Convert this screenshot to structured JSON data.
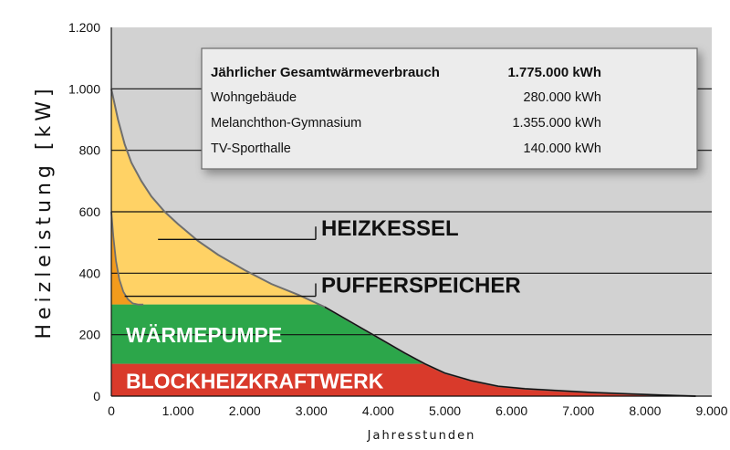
{
  "chart_data": {
    "type": "area",
    "xlabel": "Jahresstunden",
    "ylabel": "Heizleistung [kW]",
    "xlim": [
      0,
      9000
    ],
    "ylim": [
      0,
      1200
    ],
    "x_ticks": [
      {
        "value": 0,
        "label": "0"
      },
      {
        "value": 1000,
        "label": "1.000"
      },
      {
        "value": 2000,
        "label": "2.000"
      },
      {
        "value": 3000,
        "label": "3.000"
      },
      {
        "value": 4000,
        "label": "4.000"
      },
      {
        "value": 5000,
        "label": "5.000"
      },
      {
        "value": 6000,
        "label": "6.000"
      },
      {
        "value": 7000,
        "label": "7.000"
      },
      {
        "value": 8000,
        "label": "8.000"
      },
      {
        "value": 9000,
        "label": "9.000"
      }
    ],
    "y_ticks": [
      {
        "value": 0,
        "label": "0"
      },
      {
        "value": 200,
        "label": "200"
      },
      {
        "value": 400,
        "label": "400"
      },
      {
        "value": 600,
        "label": "600"
      },
      {
        "value": 800,
        "label": "800"
      },
      {
        "value": 1000,
        "label": "1.000"
      },
      {
        "value": 1200,
        "label": "1.200"
      }
    ],
    "grid": "horizontal",
    "load_curve": {
      "x": [
        0,
        100,
        200,
        300,
        450,
        600,
        800,
        1000,
        1300,
        1600,
        2000,
        2400,
        2800,
        3200,
        3600,
        4000,
        4400,
        4700,
        5000,
        5400,
        5800,
        6200,
        6700,
        7200,
        7800,
        8300,
        8760
      ],
      "y": [
        1000,
        900,
        820,
        760,
        700,
        650,
        600,
        560,
        505,
        460,
        410,
        365,
        330,
        290,
        240,
        190,
        140,
        105,
        75,
        50,
        32,
        24,
        18,
        12,
        7,
        3,
        0
      ]
    },
    "pufferspeicher_curve": {
      "x": [
        0,
        30,
        70,
        120,
        180,
        250,
        320,
        400,
        480
      ],
      "y": [
        600,
        520,
        440,
        380,
        340,
        315,
        302,
        298,
        298
      ]
    },
    "bands": [
      {
        "label": "BLOCKHEIZKRAFTWERK",
        "y_from": 0,
        "y_to": 105,
        "color": "#d93a2b"
      },
      {
        "label": "WÄRMEPUMPE",
        "y_from": 105,
        "y_to": 298,
        "color": "#2ca64a"
      },
      {
        "label": "PUFFERSPEICHER",
        "color": "#f29b1d"
      },
      {
        "label": "HEIZKESSEL",
        "color": "#ffd265"
      }
    ],
    "callouts": [
      {
        "label": "HEIZKESSEL",
        "point": [
          700,
          510
        ],
        "y_label": 540
      },
      {
        "label": "PUFFERSPEICHER",
        "point": [
          200,
          325
        ],
        "y_label": 355
      }
    ],
    "colors": {
      "plot_bg": "#d2d2d2",
      "grid": "#111111",
      "curve": "#6f6f6f"
    }
  },
  "info_table": {
    "title": "Jährlicher Gesamtwärmeverbrauch",
    "total": "1.775.000 kWh",
    "rows": [
      {
        "label": "Wohngebäude",
        "value": "280.000 kWh"
      },
      {
        "label": "Melanchthon-Gymnasium",
        "value": "1.355.000 kWh"
      },
      {
        "label": "TV-Sporthalle",
        "value": "140.000 kWh"
      }
    ]
  }
}
